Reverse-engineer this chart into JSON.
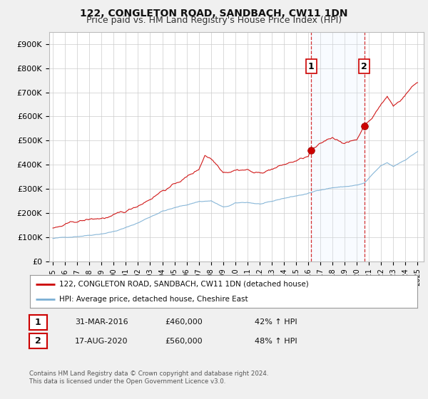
{
  "title": "122, CONGLETON ROAD, SANDBACH, CW11 1DN",
  "subtitle": "Price paid vs. HM Land Registry's House Price Index (HPI)",
  "ylabel_ticks": [
    "£0",
    "£100K",
    "£200K",
    "£300K",
    "£400K",
    "£500K",
    "£600K",
    "£700K",
    "£800K",
    "£900K"
  ],
  "ytick_values": [
    0,
    100000,
    200000,
    300000,
    400000,
    500000,
    600000,
    700000,
    800000,
    900000
  ],
  "ylim": [
    0,
    950000
  ],
  "xlim_start": 1994.7,
  "xlim_end": 2025.5,
  "red_line_color": "#cc0000",
  "blue_line_color": "#7bafd4",
  "shade_color": "#ddeeff",
  "marker1_x": 2016.25,
  "marker1_y": 460000,
  "marker2_x": 2020.62,
  "marker2_y": 560000,
  "marker1_label": "1",
  "marker2_label": "2",
  "vline1_x": 2016.25,
  "vline2_x": 2020.62,
  "legend_line1": "122, CONGLETON ROAD, SANDBACH, CW11 1DN (detached house)",
  "legend_line2": "HPI: Average price, detached house, Cheshire East",
  "table_row1_num": "1",
  "table_row1_date": "31-MAR-2016",
  "table_row1_price": "£460,000",
  "table_row1_hpi": "42% ↑ HPI",
  "table_row2_num": "2",
  "table_row2_date": "17-AUG-2020",
  "table_row2_price": "£560,000",
  "table_row2_hpi": "48% ↑ HPI",
  "footer": "Contains HM Land Registry data © Crown copyright and database right 2024.\nThis data is licensed under the Open Government Licence v3.0.",
  "background_color": "#f0f0f0",
  "plot_bg_color": "#ffffff",
  "grid_color": "#cccccc",
  "title_fontsize": 10,
  "subtitle_fontsize": 9
}
